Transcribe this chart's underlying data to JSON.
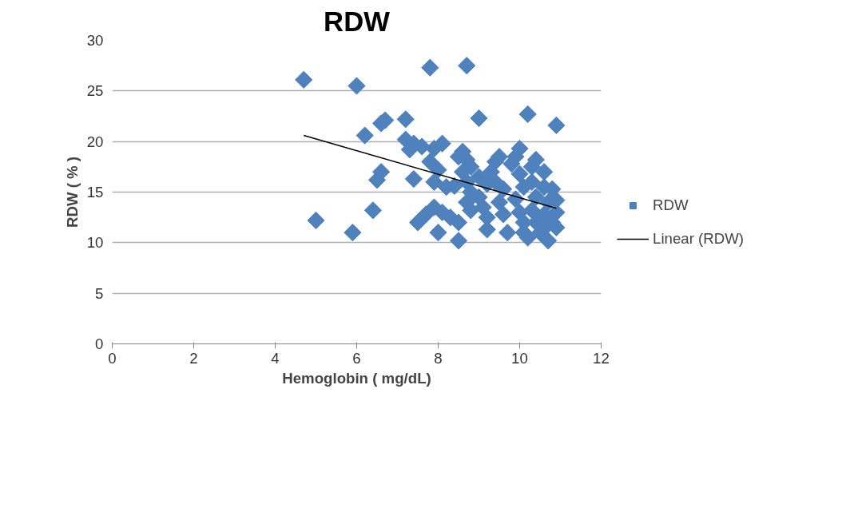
{
  "chart_data": {
    "type": "scatter",
    "title": "RDW",
    "xlabel": "Hemoglobin ( mg/dL)",
    "ylabel": "RDW ( % )",
    "xlim": [
      0,
      12
    ],
    "xticks": [
      0,
      2,
      4,
      6,
      8,
      10,
      12
    ],
    "ylim": [
      0,
      30
    ],
    "yticks": [
      0,
      5,
      10,
      15,
      20,
      25,
      30
    ],
    "grid": "y",
    "legend": "right",
    "series": [
      {
        "name": "RDW",
        "color": "#4f81bd",
        "marker": "diamond",
        "x": [
          4.7,
          6.0,
          7.8,
          8.7,
          9.0,
          10.2,
          10.9,
          6.2,
          6.6,
          6.7,
          7.2,
          7.2,
          7.4,
          7.3,
          6.6,
          6.5,
          7.4,
          5.0,
          5.9,
          6.4,
          7.5,
          7.7,
          8.0,
          8.5,
          10.7,
          7.6,
          7.9,
          8.1,
          7.8,
          8.0,
          7.9,
          8.2,
          8.4,
          7.9,
          8.1,
          8.3,
          8.5,
          8.6,
          8.5,
          8.7,
          8.8,
          8.6,
          8.7,
          8.8,
          8.7,
          8.8,
          9.0,
          9.1,
          9.2,
          9.2,
          9.3,
          9.4,
          9.5,
          9.4,
          9.6,
          9.5,
          9.6,
          9.7,
          9.8,
          10.0,
          9.9,
          10.0,
          10.1,
          9.9,
          10.0,
          10.1,
          10.1,
          10.2,
          10.3,
          10.4,
          10.3,
          10.4,
          10.3,
          10.4,
          10.6,
          10.6,
          10.7,
          10.6,
          10.7,
          10.8,
          10.9,
          10.9,
          10.8,
          10.9,
          9.2,
          9.0,
          10.5
        ],
        "values": [
          26.1,
          25.5,
          27.3,
          27.5,
          22.3,
          22.7,
          21.6,
          20.6,
          21.8,
          22.1,
          22.2,
          20.2,
          19.8,
          19.2,
          17.0,
          16.2,
          16.3,
          12.2,
          11.0,
          13.2,
          12.0,
          12.8,
          11.0,
          10.2,
          10.2,
          19.5,
          19.3,
          19.8,
          18.0,
          17.2,
          16.0,
          15.5,
          15.6,
          13.5,
          13.0,
          12.5,
          12.0,
          19.0,
          18.5,
          18.2,
          17.5,
          17.0,
          16.0,
          15.0,
          14.0,
          13.2,
          14.5,
          13.5,
          12.5,
          11.3,
          17.0,
          18.0,
          18.5,
          16.0,
          15.3,
          14.0,
          12.8,
          11.0,
          17.8,
          19.3,
          18.5,
          16.8,
          15.5,
          14.3,
          13.0,
          12.0,
          11.0,
          10.5,
          17.5,
          18.2,
          16.0,
          14.5,
          13.2,
          12.0,
          17.0,
          15.5,
          14.0,
          12.8,
          11.8,
          15.3,
          14.2,
          13.0,
          12.0,
          11.5,
          15.8,
          16.5,
          11.0
        ]
      },
      {
        "name": "Linear (RDW)",
        "color": "#000000",
        "type": "line",
        "marker": "none",
        "x": [
          4.7,
          10.9
        ],
        "values": [
          20.6,
          13.4
        ]
      }
    ]
  }
}
